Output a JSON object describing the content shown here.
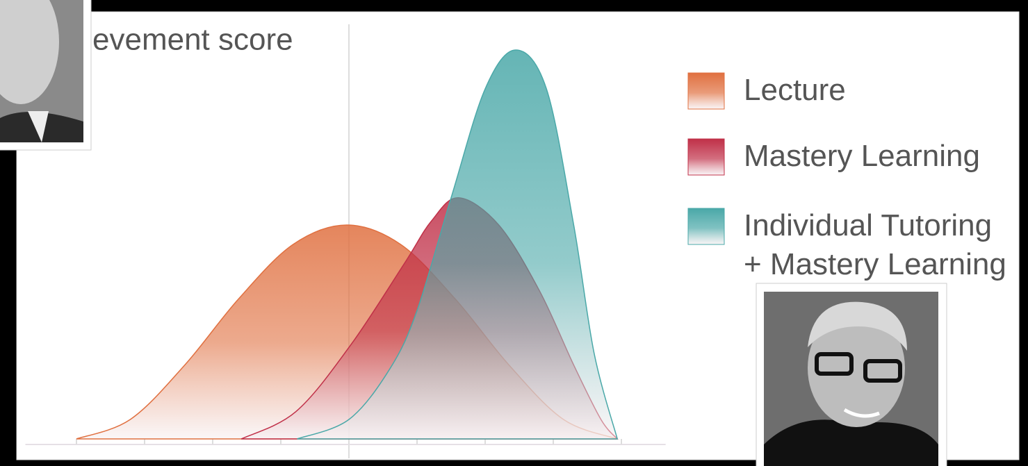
{
  "chart_data": {
    "type": "area",
    "title": "evement score",
    "xlim": [
      -0.75,
      8.65
    ],
    "xticks": [
      0,
      1,
      2,
      3,
      4,
      5,
      6,
      7,
      8
    ],
    "ylim": [
      0,
      1
    ],
    "series": [
      {
        "name": "Lecture",
        "color": "#e07040",
        "x": [
          0,
          0.79,
          1.59,
          2.38,
          3.18,
          3.97,
          4.76,
          5.56,
          6.35,
          7.15,
          7.94
        ],
        "values": [
          0,
          0.05,
          0.19,
          0.36,
          0.5,
          0.55,
          0.5,
          0.36,
          0.19,
          0.05,
          0
        ]
      },
      {
        "name": "Mastery Learning",
        "color": "#c03048",
        "x": [
          2.42,
          3.22,
          4.02,
          4.81,
          5.21,
          5.61,
          6.2,
          6.8,
          7.3,
          7.7,
          7.94
        ],
        "values": [
          0,
          0.07,
          0.24,
          0.45,
          0.56,
          0.62,
          0.55,
          0.38,
          0.19,
          0.05,
          0
        ]
      },
      {
        "name": "Individual Tutoring + Mastery Learning",
        "color": "#4aa8a8",
        "x": [
          3.24,
          4.0,
          4.6,
          5.0,
          5.5,
          6.0,
          6.45,
          6.9,
          7.3,
          7.6,
          7.94
        ],
        "values": [
          0,
          0.05,
          0.18,
          0.33,
          0.62,
          0.9,
          1.0,
          0.9,
          0.55,
          0.22,
          0
        ]
      }
    ]
  }
}
